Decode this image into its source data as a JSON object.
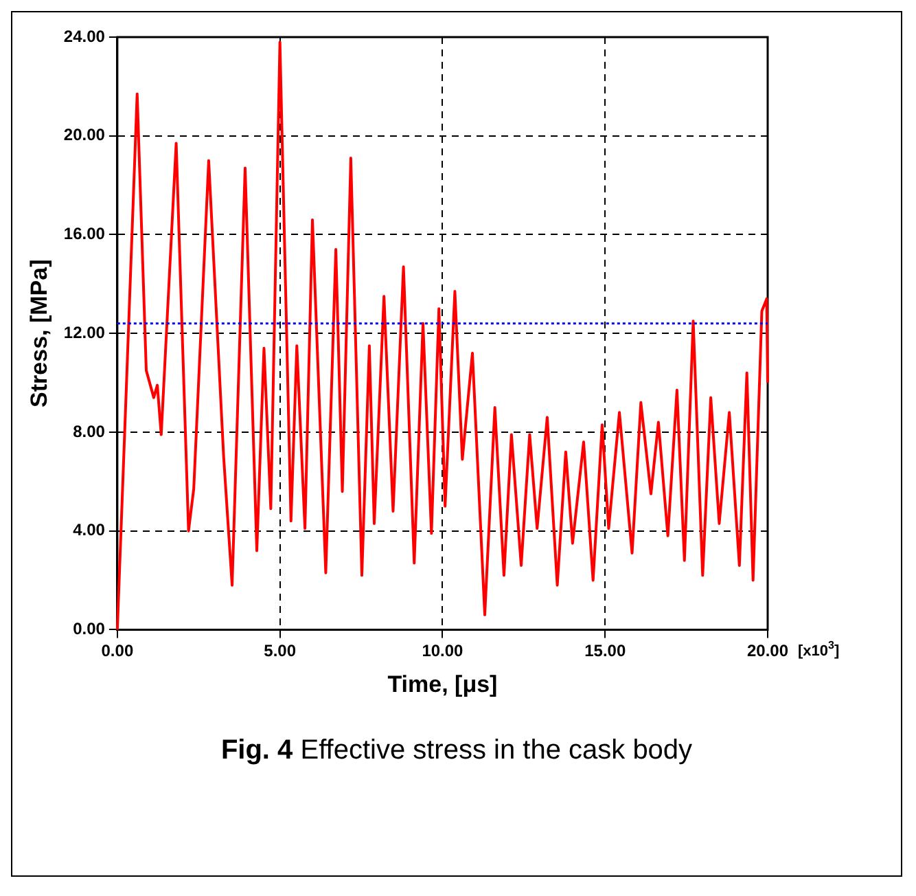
{
  "chart_data": {
    "type": "line",
    "xlabel": "Time, [μs]",
    "ylabel": "Stress, [MPa]",
    "annotations": [
      "[x10$^{3}$]",
      "Fig. 4",
      "Effective stress in the cask body"
    ],
    "x": [
      0,
      0.28,
      0.61,
      0.89,
      1.12,
      1.23,
      1.35,
      1.81,
      2.19,
      2.35,
      2.81,
      3.27,
      3.53,
      3.93,
      4.29,
      4.51,
      4.72,
      5.0,
      5.34,
      5.52,
      5.77,
      6.0,
      6.41,
      6.72,
      6.92,
      7.18,
      7.52,
      7.75,
      7.9,
      8.2,
      8.48,
      8.8,
      9.13,
      9.4,
      9.66,
      9.89,
      10.08,
      10.38,
      10.61,
      10.92,
      11.3,
      11.61,
      11.89,
      12.12,
      12.42,
      12.68,
      12.91,
      13.22,
      13.53,
      13.79,
      14.0,
      14.34,
      14.63,
      14.91,
      15.11,
      15.44,
      15.83,
      16.1,
      16.41,
      16.64,
      16.93,
      17.21,
      17.44,
      17.71,
      18.0,
      18.25,
      18.51,
      18.82,
      19.13,
      19.36,
      19.55,
      19.82,
      19.97,
      20.0
    ],
    "series": [
      {
        "color": "#ff0000",
        "values": [
          0,
          9.9,
          21.7,
          10.5,
          9.4,
          9.9,
          7.9,
          19.7,
          4.0,
          5.7,
          19.0,
          7.0,
          1.8,
          18.7,
          3.2,
          11.4,
          4.9,
          23.8,
          4.4,
          11.5,
          4.1,
          16.6,
          2.3,
          15.4,
          5.6,
          19.1,
          2.2,
          11.5,
          4.3,
          13.5,
          4.8,
          14.7,
          2.7,
          12.4,
          3.9,
          13.0,
          5.0,
          13.7,
          6.9,
          11.2,
          0.6,
          9.0,
          2.2,
          7.9,
          2.6,
          7.9,
          4.1,
          8.6,
          1.8,
          7.2,
          3.5,
          7.6,
          2.0,
          8.3,
          4.1,
          8.8,
          3.1,
          9.2,
          5.5,
          8.4,
          3.8,
          9.7,
          2.8,
          12.5,
          2.2,
          9.4,
          4.3,
          8.8,
          2.6,
          10.4,
          2.0,
          12.9,
          13.4,
          10.0
        ]
      }
    ],
    "xlim": [
      0,
      20
    ],
    "xticks": [
      {
        "value": 0,
        "label": "0.00"
      },
      {
        "value": 5,
        "label": "5.00"
      },
      {
        "value": 10,
        "label": "10.00"
      },
      {
        "value": 15,
        "label": "15.00"
      },
      {
        "value": 20,
        "label": "20.00"
      }
    ],
    "ylim": [
      0,
      24
    ],
    "yticks": [
      {
        "value": 0,
        "label": "0.00"
      },
      {
        "value": 4,
        "label": "4.00"
      },
      {
        "value": 8,
        "label": "8.00"
      },
      {
        "value": 12,
        "label": "12.00"
      },
      {
        "value": 16,
        "label": "16.00"
      },
      {
        "value": 20,
        "label": "20.00"
      },
      {
        "value": 24,
        "label": "24.00"
      }
    ],
    "ref_lines": [
      {
        "axis": "y",
        "value": 12.4,
        "color": "#0000ff",
        "line_style": "dotted"
      }
    ],
    "grid": true,
    "legend": false,
    "marker": "none",
    "line_style": "solid"
  }
}
